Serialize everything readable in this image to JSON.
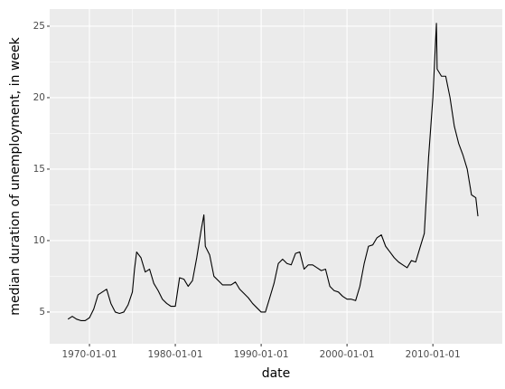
{
  "chart_data": {
    "type": "line",
    "x_label": "date",
    "y_label": "median duration of unemployment, in week",
    "x": [
      "1967-07-01",
      "1968-01-01",
      "1968-07-01",
      "1969-01-01",
      "1969-07-01",
      "1970-01-01",
      "1970-07-01",
      "1971-01-01",
      "1971-07-01",
      "1972-01-01",
      "1972-07-01",
      "1973-01-01",
      "1973-07-01",
      "1974-01-01",
      "1974-07-01",
      "1975-01-01",
      "1975-04-01",
      "1975-07-01",
      "1976-01-01",
      "1976-07-01",
      "1977-01-01",
      "1977-07-01",
      "1978-01-01",
      "1978-07-01",
      "1979-01-01",
      "1979-07-01",
      "1980-01-01",
      "1980-07-01",
      "1981-01-01",
      "1981-07-01",
      "1982-01-01",
      "1982-07-01",
      "1983-01-01",
      "1983-05-01",
      "1983-07-01",
      "1984-01-01",
      "1984-07-01",
      "1985-01-01",
      "1985-07-01",
      "1986-01-01",
      "1986-07-01",
      "1987-01-01",
      "1987-07-01",
      "1988-01-01",
      "1988-07-01",
      "1989-01-01",
      "1989-07-01",
      "1990-01-01",
      "1990-07-01",
      "1991-01-01",
      "1991-07-01",
      "1992-01-01",
      "1992-07-01",
      "1993-01-01",
      "1993-07-01",
      "1994-01-01",
      "1994-07-01",
      "1995-01-01",
      "1995-07-01",
      "1996-01-01",
      "1996-07-01",
      "1997-01-01",
      "1997-07-01",
      "1998-01-01",
      "1998-07-01",
      "1999-01-01",
      "1999-07-01",
      "2000-01-01",
      "2000-07-01",
      "2001-01-01",
      "2001-07-01",
      "2002-01-01",
      "2002-07-01",
      "2003-01-01",
      "2003-07-01",
      "2004-01-01",
      "2004-07-01",
      "2005-01-01",
      "2005-07-01",
      "2006-01-01",
      "2006-07-01",
      "2007-01-01",
      "2007-07-01",
      "2008-01-01",
      "2008-07-01",
      "2009-01-01",
      "2009-07-01",
      "2010-01-01",
      "2010-06-01",
      "2010-07-01",
      "2011-01-01",
      "2011-07-01",
      "2012-01-01",
      "2012-07-01",
      "2013-01-01",
      "2013-07-01",
      "2014-01-01",
      "2014-07-01",
      "2015-01-01",
      "2015-04-01"
    ],
    "series": [
      {
        "color": "#000000",
        "values": [
          4.5,
          4.7,
          4.5,
          4.4,
          4.4,
          4.6,
          5.2,
          6.2,
          6.4,
          6.6,
          5.6,
          5.0,
          4.9,
          5.0,
          5.5,
          6.4,
          8.0,
          9.2,
          8.8,
          7.8,
          8.0,
          7.0,
          6.5,
          5.9,
          5.6,
          5.4,
          5.4,
          7.4,
          7.3,
          6.8,
          7.2,
          8.8,
          10.7,
          11.8,
          9.6,
          9.0,
          7.5,
          7.2,
          6.9,
          6.9,
          6.9,
          7.1,
          6.6,
          6.3,
          6.0,
          5.6,
          5.3,
          5.0,
          5.0,
          6.0,
          7.0,
          8.4,
          8.7,
          8.4,
          8.3,
          9.1,
          9.2,
          8.0,
          8.3,
          8.3,
          8.1,
          7.9,
          8.0,
          6.8,
          6.5,
          6.4,
          6.1,
          5.9,
          5.9,
          5.8,
          6.8,
          8.4,
          9.6,
          9.7,
          10.2,
          10.4,
          9.6,
          9.2,
          8.8,
          8.5,
          8.3,
          8.1,
          8.6,
          8.5,
          9.5,
          10.5,
          15.8,
          20.0,
          25.2,
          22.0,
          21.5,
          21.5,
          20.0,
          18.0,
          16.8,
          16.0,
          15.0,
          13.2,
          13.0,
          11.7
        ]
      }
    ],
    "xlim": [
      "1965-05-15",
      "2018-02-01"
    ],
    "xticks": [
      "1970-01-01",
      "1980-01-01",
      "1990-01-01",
      "2000-01-01",
      "2010-01-01"
    ],
    "ylim": [
      2.78,
      26.2
    ],
    "yticks": [
      5,
      10,
      15,
      20,
      25
    ],
    "grid": true
  }
}
